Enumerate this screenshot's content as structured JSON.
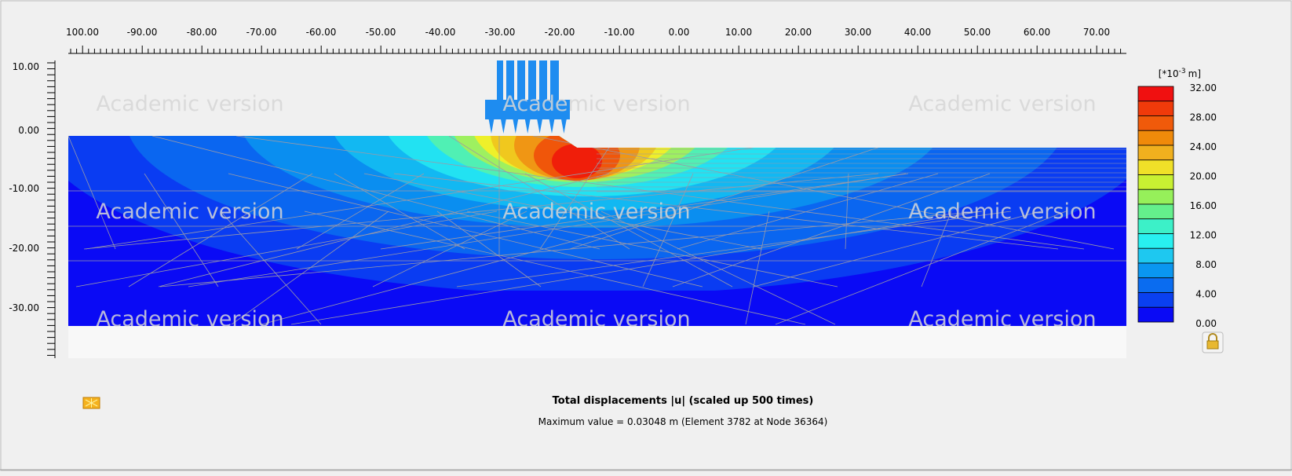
{
  "ruler_x": {
    "labels": [
      "100.00",
      "-90.00",
      "-80.00",
      "-70.00",
      "-60.00",
      "-50.00",
      "-40.00",
      "-30.00",
      "-20.00",
      "-10.00",
      "0.00",
      "10.00",
      "20.00",
      "30.00",
      "40.00",
      "50.00",
      "60.00",
      "70.00"
    ]
  },
  "ruler_y": {
    "labels": [
      "10.00",
      "0.00",
      "-10.00",
      "-20.00",
      "-30.00"
    ]
  },
  "watermarks": [
    "Academic version",
    "Academic version",
    "Academic version",
    "Academic version",
    "Academic version",
    "Academic version",
    "Academic version",
    "Academic version",
    "Academic version"
  ],
  "legend": {
    "unit": {
      "base": "[*10",
      "exponent": "-3",
      "suffix": "m]"
    },
    "labels": [
      "32.00",
      "28.00",
      "24.00",
      "20.00",
      "16.00",
      "12.00",
      "8.00",
      "4.00",
      "0.00"
    ]
  },
  "caption": {
    "title": "Total displacements |u| (scaled up 500 times)",
    "subtitle": "Maximum value = 0.03048 m (Element 3782 at Node 36364)"
  }
}
